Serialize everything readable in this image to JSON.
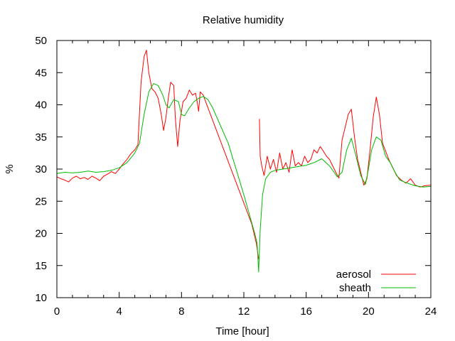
{
  "chart_data": {
    "type": "line",
    "title": "Relative humidity",
    "xlabel": "Time [hour]",
    "ylabel": "%",
    "xlim": [
      0,
      24
    ],
    "ylim": [
      10,
      50
    ],
    "xticks": [
      0,
      4,
      8,
      12,
      16,
      20,
      24
    ],
    "yticks": [
      10,
      15,
      20,
      25,
      30,
      35,
      40,
      45,
      50
    ],
    "grid": false,
    "legend_position": "bottom-right",
    "series": [
      {
        "name": "aerosol",
        "color": "#ff0000",
        "segments": [
          {
            "x": [
              0,
              0.25,
              0.5,
              0.75,
              1.0,
              1.25,
              1.5,
              1.75,
              2.0,
              2.25,
              2.5,
              2.75,
              3.0,
              3.25,
              3.5,
              3.75,
              4.0,
              4.25,
              4.5,
              4.75,
              5.0,
              5.2,
              5.4,
              5.6,
              5.75,
              5.9,
              6.1,
              6.3,
              6.5,
              6.7,
              6.85,
              7.0,
              7.15,
              7.3,
              7.5,
              7.6,
              7.75,
              7.9,
              8.1,
              8.3,
              8.5,
              8.7,
              8.9,
              9.0,
              9.1,
              9.2,
              9.4,
              9.5,
              12.5,
              12.8,
              12.95
            ],
            "y": [
              28.8,
              28.5,
              28.3,
              28.0,
              28.6,
              28.9,
              28.5,
              28.7,
              28.4,
              28.9,
              28.6,
              28.2,
              28.9,
              29.2,
              29.6,
              29.3,
              30.0,
              30.8,
              31.5,
              32.4,
              33.0,
              33.8,
              43.5,
              47.5,
              48.5,
              45.0,
              42.5,
              42.0,
              41.0,
              38.5,
              36.0,
              38.0,
              41.0,
              43.5,
              43.0,
              38.0,
              33.5,
              37.5,
              40.5,
              41.0,
              42.3,
              41.5,
              41.8,
              40.5,
              39.0,
              42.0,
              41.5,
              40.8,
              21.5,
              18.5,
              16.0
            ]
          },
          {
            "x": [
              13.0,
              13.05,
              13.15,
              13.3,
              13.5,
              13.7,
              13.9,
              14.1,
              14.3,
              14.5,
              14.7,
              14.9,
              15.1,
              15.3,
              15.5,
              15.7,
              15.9,
              16.1,
              16.3,
              16.5,
              16.7,
              16.9,
              17.1,
              17.3,
              17.5,
              17.7,
              17.9,
              18.1,
              18.3,
              18.5,
              18.7,
              18.9,
              19.1,
              19.3,
              19.5,
              19.7,
              19.9,
              20.1,
              20.3,
              20.5,
              20.7,
              20.9,
              21.1,
              21.3,
              21.5,
              21.8,
              22.1,
              22.4,
              22.7,
              23.0,
              23.3,
              23.6,
              24.0
            ],
            "y": [
              37.8,
              32.0,
              30.5,
              29.0,
              32.0,
              30.0,
              31.5,
              29.5,
              32.5,
              30.0,
              31.0,
              29.5,
              33.0,
              30.5,
              31.0,
              30.5,
              32.0,
              31.0,
              31.5,
              33.0,
              32.5,
              33.5,
              32.8,
              32.0,
              31.5,
              30.5,
              29.5,
              28.6,
              34.5,
              36.5,
              38.5,
              39.3,
              35.0,
              31.5,
              29.5,
              27.5,
              28.5,
              33.0,
              38.0,
              41.2,
              38.5,
              34.0,
              32.8,
              31.5,
              30.5,
              29.0,
              28.3,
              27.8,
              28.5,
              27.5,
              27.2,
              27.4,
              27.5
            ]
          }
        ]
      },
      {
        "name": "sheath",
        "color": "#00bb00",
        "segments": [
          {
            "x": [
              0,
              0.5,
              1.0,
              1.5,
              2.0,
              2.5,
              3.0,
              3.5,
              4.0,
              4.5,
              5.0,
              5.3,
              5.6,
              5.9,
              6.2,
              6.5,
              6.8,
              7.0,
              7.2,
              7.5,
              7.8,
              8.0,
              8.2,
              8.5,
              8.8,
              9.1,
              9.4,
              9.7,
              10.0,
              11.0,
              12.0,
              12.7,
              12.85,
              12.95,
              13.05,
              13.2,
              13.4,
              13.7,
              14.0,
              14.5,
              15.0,
              15.5,
              16.0,
              16.5,
              17.0,
              17.5,
              18.0,
              18.3,
              18.6,
              18.9,
              19.2,
              19.5,
              19.8,
              20.0,
              20.2,
              20.5,
              20.8,
              21.1,
              21.4,
              21.7,
              22.0,
              22.5,
              23.0,
              23.5,
              24.0
            ],
            "y": [
              29.3,
              29.5,
              29.4,
              29.5,
              29.7,
              29.5,
              29.6,
              29.8,
              30.2,
              31.0,
              32.5,
              34.0,
              38.5,
              42.0,
              43.3,
              43.0,
              41.5,
              40.0,
              39.5,
              40.8,
              40.5,
              38.5,
              38.3,
              39.5,
              40.5,
              41.0,
              41.3,
              40.8,
              39.5,
              34.0,
              26.0,
              20.0,
              18.5,
              14.0,
              20.5,
              26.0,
              28.5,
              29.5,
              29.8,
              30.0,
              30.2,
              30.4,
              30.6,
              31.0,
              31.6,
              30.5,
              28.8,
              29.5,
              33.0,
              34.8,
              32.0,
              29.0,
              27.6,
              30.0,
              33.0,
              35.0,
              34.5,
              32.0,
              31.0,
              29.5,
              28.3,
              27.8,
              27.4,
              27.2,
              27.3
            ]
          }
        ]
      }
    ]
  }
}
